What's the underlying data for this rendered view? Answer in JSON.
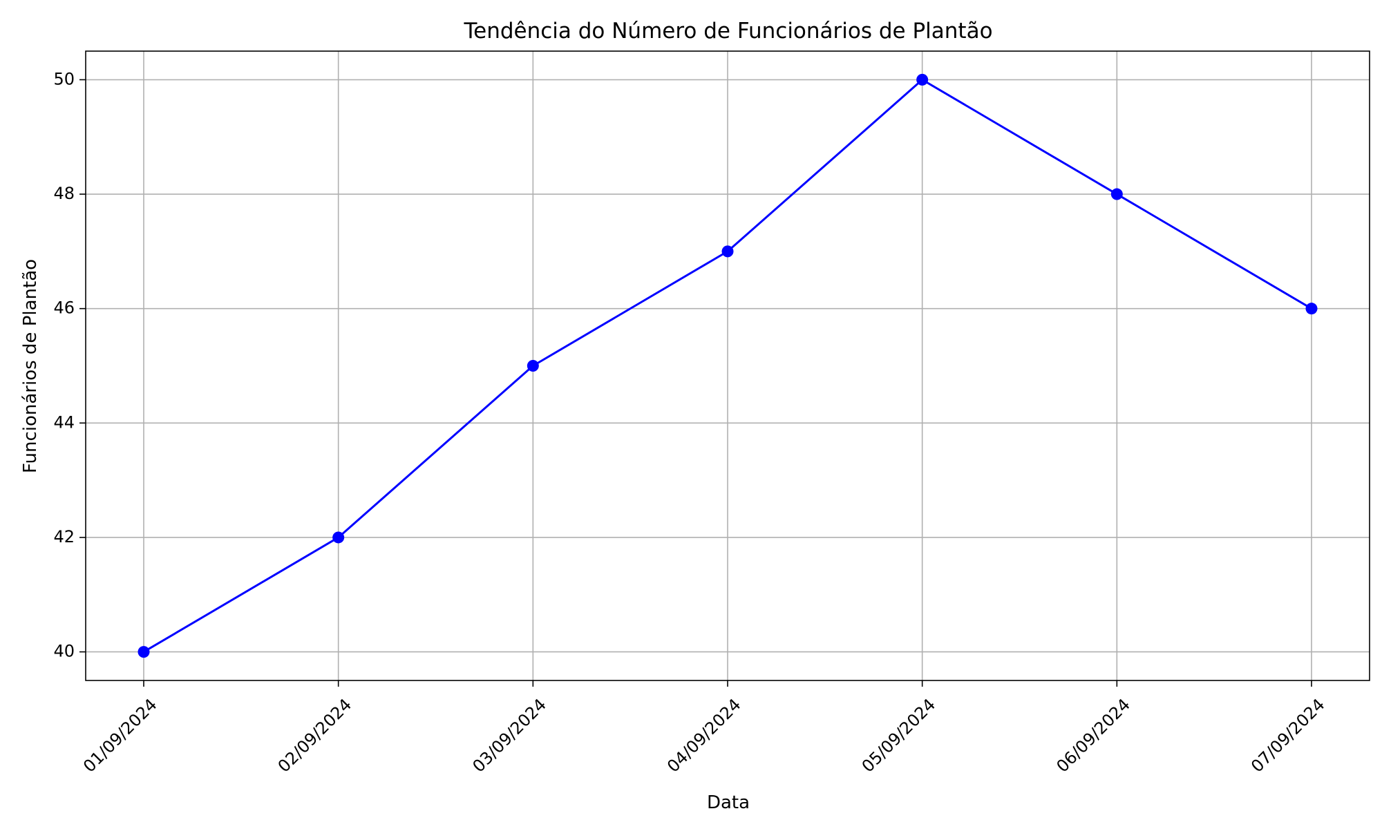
{
  "chart_data": {
    "type": "line",
    "title": "Tendência do Número de Funcionários de Plantão",
    "xlabel": "Data",
    "ylabel": "Funcionários de Plantão",
    "categories": [
      "01/09/2024",
      "02/09/2024",
      "03/09/2024",
      "04/09/2024",
      "05/09/2024",
      "06/09/2024",
      "07/09/2024"
    ],
    "series": [
      {
        "values": [
          40,
          42,
          45,
          47,
          50,
          48,
          46
        ],
        "color": "#0000ff",
        "marker": "circle"
      }
    ],
    "ylim": [
      39.5,
      50.5
    ],
    "yticks": [
      40,
      42,
      44,
      46,
      48,
      50
    ],
    "grid": true,
    "legend": "none",
    "colors": {
      "grid": "#b0b0b0",
      "axis": "#000000"
    }
  }
}
